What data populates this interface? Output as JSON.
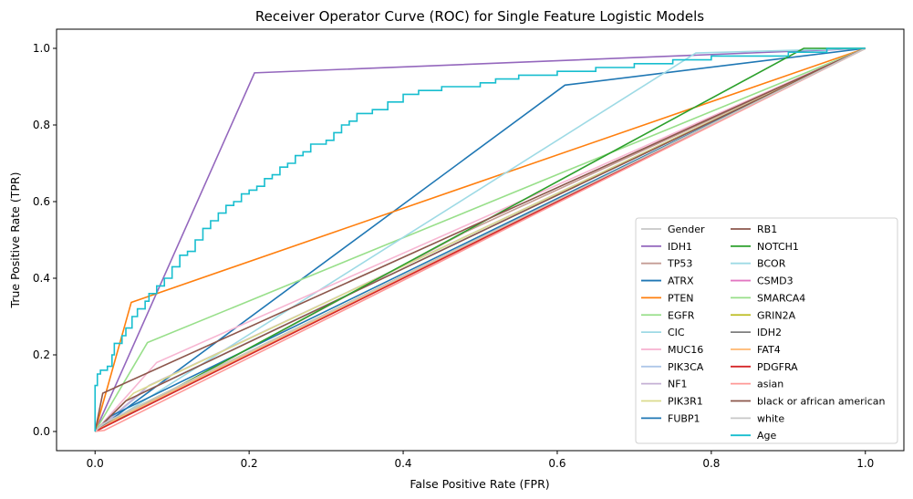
{
  "chart_data": {
    "type": "line",
    "title": "Receiver Operator Curve (ROC) for Single Feature Logistic Models",
    "xlabel": "False Positive Rate (FPR)",
    "ylabel": "True Positive Rate (TPR)",
    "xlim": [
      -0.05,
      1.05
    ],
    "ylim": [
      -0.05,
      1.05
    ],
    "xticks": [
      "0.0",
      "0.2",
      "0.4",
      "0.6",
      "0.8",
      "1.0"
    ],
    "yticks": [
      "0.0",
      "0.2",
      "0.4",
      "0.6",
      "0.8",
      "1.0"
    ],
    "grid": false,
    "legend": {
      "placement": "lower-right",
      "columns": 2
    },
    "series": [
      {
        "name": "Gender",
        "color": "#c7c7c7",
        "points": [
          [
            0,
            0
          ],
          [
            0.5,
            0.5
          ],
          [
            1,
            1
          ]
        ]
      },
      {
        "name": "IDH1",
        "color": "#9467bd",
        "points": [
          [
            0,
            0
          ],
          [
            0.207,
            0.936
          ],
          [
            1,
            1
          ]
        ]
      },
      {
        "name": "TP53",
        "color": "#c49c94",
        "points": [
          [
            0,
            0
          ],
          [
            0.48,
            0.52
          ],
          [
            1,
            1
          ]
        ]
      },
      {
        "name": "ATRX",
        "color": "#1f77b4",
        "points": [
          [
            0,
            0
          ],
          [
            0.61,
            0.904
          ],
          [
            1,
            1
          ]
        ]
      },
      {
        "name": "PTEN",
        "color": "#ff7f0e",
        "points": [
          [
            0,
            0
          ],
          [
            0.047,
            0.337
          ],
          [
            1,
            1
          ]
        ]
      },
      {
        "name": "EGFR",
        "color": "#98df8a",
        "points": [
          [
            0,
            0
          ],
          [
            0.068,
            0.232
          ],
          [
            1,
            1
          ]
        ]
      },
      {
        "name": "CIC",
        "color": "#9edae5",
        "points": [
          [
            0,
            0
          ],
          [
            0.78,
            0.988
          ],
          [
            1,
            1
          ]
        ]
      },
      {
        "name": "MUC16",
        "color": "#f7b6d2",
        "points": [
          [
            0,
            0
          ],
          [
            0.08,
            0.18
          ],
          [
            1,
            1
          ]
        ]
      },
      {
        "name": "PIK3CA",
        "color": "#aec7e8",
        "points": [
          [
            0,
            0
          ],
          [
            0.06,
            0.1
          ],
          [
            1,
            1
          ]
        ]
      },
      {
        "name": "NF1",
        "color": "#c5b0d5",
        "points": [
          [
            0,
            0
          ],
          [
            0.07,
            0.12
          ],
          [
            1,
            1
          ]
        ]
      },
      {
        "name": "PIK3R1",
        "color": "#dbdb8d",
        "points": [
          [
            0,
            0
          ],
          [
            0.05,
            0.1
          ],
          [
            1,
            1
          ]
        ]
      },
      {
        "name": "FUBP1",
        "color": "#1f77b4",
        "points": [
          [
            0,
            0
          ],
          [
            0.02,
            0.04
          ],
          [
            1,
            1
          ]
        ]
      },
      {
        "name": "RB1",
        "color": "#8c564b",
        "points": [
          [
            0,
            0
          ],
          [
            0.04,
            0.08
          ],
          [
            1,
            1
          ]
        ]
      },
      {
        "name": "NOTCH1",
        "color": "#2ca02c",
        "points": [
          [
            0,
            0
          ],
          [
            0.92,
            1.0
          ],
          [
            1,
            1
          ]
        ]
      },
      {
        "name": "BCOR",
        "color": "#9edae5",
        "points": [
          [
            0,
            0
          ],
          [
            0.02,
            0.03
          ],
          [
            1,
            1
          ]
        ]
      },
      {
        "name": "CSMD3",
        "color": "#e377c2",
        "points": [
          [
            0,
            0
          ],
          [
            0.03,
            0.04
          ],
          [
            1,
            1
          ]
        ]
      },
      {
        "name": "SMARCA4",
        "color": "#98df8a",
        "points": [
          [
            0,
            0
          ],
          [
            0.02,
            0.025
          ],
          [
            1,
            1
          ]
        ]
      },
      {
        "name": "GRIN2A",
        "color": "#bcbd22",
        "points": [
          [
            0,
            0
          ],
          [
            0.04,
            0.05
          ],
          [
            1,
            1
          ]
        ]
      },
      {
        "name": "IDH2",
        "color": "#7f7f7f",
        "points": [
          [
            0,
            0
          ],
          [
            0.015,
            0.02
          ],
          [
            1,
            1
          ]
        ]
      },
      {
        "name": "FAT4",
        "color": "#ffbb78",
        "points": [
          [
            0,
            0
          ],
          [
            0.03,
            0.035
          ],
          [
            1,
            1
          ]
        ]
      },
      {
        "name": "PDGFRA",
        "color": "#d62728",
        "points": [
          [
            0,
            0
          ],
          [
            0.03,
            0.03
          ],
          [
            1,
            1
          ]
        ]
      },
      {
        "name": "asian",
        "color": "#ff9896",
        "points": [
          [
            0,
            0
          ],
          [
            0.012,
            0.003
          ],
          [
            1,
            1
          ]
        ]
      },
      {
        "name": "black or african american",
        "color": "#8c564b",
        "points": [
          [
            0,
            0
          ],
          [
            0.01,
            0.1
          ],
          [
            1,
            1
          ]
        ]
      },
      {
        "name": "white",
        "color": "#c7c7c7",
        "points": [
          [
            0,
            0
          ],
          [
            0.01,
            0.02
          ],
          [
            1,
            1
          ]
        ]
      },
      {
        "name": "Age",
        "color": "#17becf",
        "points": [
          [
            0,
            0
          ],
          [
            0,
            0.12
          ],
          [
            0.003,
            0.12
          ],
          [
            0.003,
            0.15
          ],
          [
            0.007,
            0.15
          ],
          [
            0.007,
            0.16
          ],
          [
            0.016,
            0.16
          ],
          [
            0.016,
            0.17
          ],
          [
            0.022,
            0.17
          ],
          [
            0.022,
            0.2
          ],
          [
            0.025,
            0.2
          ],
          [
            0.025,
            0.23
          ],
          [
            0.035,
            0.23
          ],
          [
            0.035,
            0.25
          ],
          [
            0.04,
            0.25
          ],
          [
            0.04,
            0.27
          ],
          [
            0.048,
            0.27
          ],
          [
            0.048,
            0.3
          ],
          [
            0.055,
            0.3
          ],
          [
            0.055,
            0.32
          ],
          [
            0.065,
            0.32
          ],
          [
            0.065,
            0.34
          ],
          [
            0.07,
            0.34
          ],
          [
            0.07,
            0.36
          ],
          [
            0.08,
            0.36
          ],
          [
            0.08,
            0.38
          ],
          [
            0.09,
            0.38
          ],
          [
            0.09,
            0.4
          ],
          [
            0.1,
            0.4
          ],
          [
            0.1,
            0.43
          ],
          [
            0.11,
            0.43
          ],
          [
            0.11,
            0.46
          ],
          [
            0.12,
            0.46
          ],
          [
            0.12,
            0.47
          ],
          [
            0.13,
            0.47
          ],
          [
            0.13,
            0.5
          ],
          [
            0.14,
            0.5
          ],
          [
            0.14,
            0.53
          ],
          [
            0.15,
            0.53
          ],
          [
            0.15,
            0.55
          ],
          [
            0.16,
            0.55
          ],
          [
            0.16,
            0.57
          ],
          [
            0.17,
            0.57
          ],
          [
            0.17,
            0.59
          ],
          [
            0.18,
            0.59
          ],
          [
            0.18,
            0.6
          ],
          [
            0.19,
            0.6
          ],
          [
            0.19,
            0.62
          ],
          [
            0.2,
            0.62
          ],
          [
            0.2,
            0.63
          ],
          [
            0.21,
            0.63
          ],
          [
            0.21,
            0.64
          ],
          [
            0.22,
            0.64
          ],
          [
            0.22,
            0.66
          ],
          [
            0.23,
            0.66
          ],
          [
            0.23,
            0.67
          ],
          [
            0.24,
            0.67
          ],
          [
            0.24,
            0.69
          ],
          [
            0.25,
            0.69
          ],
          [
            0.25,
            0.7
          ],
          [
            0.26,
            0.7
          ],
          [
            0.26,
            0.72
          ],
          [
            0.27,
            0.72
          ],
          [
            0.27,
            0.73
          ],
          [
            0.28,
            0.73
          ],
          [
            0.28,
            0.75
          ],
          [
            0.3,
            0.75
          ],
          [
            0.3,
            0.76
          ],
          [
            0.31,
            0.76
          ],
          [
            0.31,
            0.78
          ],
          [
            0.32,
            0.78
          ],
          [
            0.32,
            0.8
          ],
          [
            0.33,
            0.8
          ],
          [
            0.33,
            0.81
          ],
          [
            0.34,
            0.81
          ],
          [
            0.34,
            0.83
          ],
          [
            0.36,
            0.83
          ],
          [
            0.36,
            0.84
          ],
          [
            0.38,
            0.84
          ],
          [
            0.38,
            0.86
          ],
          [
            0.4,
            0.86
          ],
          [
            0.4,
            0.88
          ],
          [
            0.42,
            0.88
          ],
          [
            0.42,
            0.89
          ],
          [
            0.45,
            0.89
          ],
          [
            0.45,
            0.9
          ],
          [
            0.5,
            0.9
          ],
          [
            0.5,
            0.91
          ],
          [
            0.52,
            0.91
          ],
          [
            0.52,
            0.92
          ],
          [
            0.55,
            0.92
          ],
          [
            0.55,
            0.93
          ],
          [
            0.6,
            0.93
          ],
          [
            0.6,
            0.94
          ],
          [
            0.65,
            0.94
          ],
          [
            0.65,
            0.95
          ],
          [
            0.7,
            0.95
          ],
          [
            0.7,
            0.96
          ],
          [
            0.75,
            0.96
          ],
          [
            0.75,
            0.97
          ],
          [
            0.8,
            0.97
          ],
          [
            0.8,
            0.98
          ],
          [
            0.9,
            0.98
          ],
          [
            0.9,
            0.99
          ],
          [
            0.95,
            0.99
          ],
          [
            0.95,
            1.0
          ],
          [
            1,
            1
          ]
        ]
      }
    ]
  }
}
